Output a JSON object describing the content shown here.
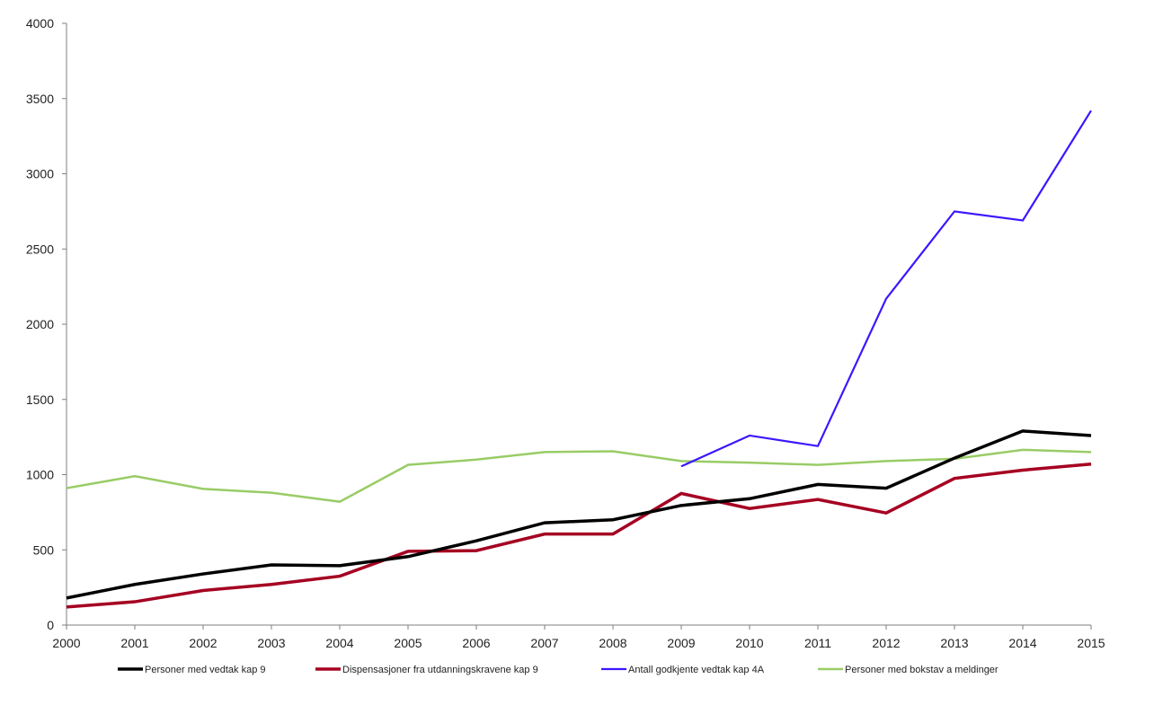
{
  "chart_data": {
    "type": "line",
    "title": "",
    "xlabel": "",
    "ylabel": "",
    "x": [
      2000,
      2001,
      2002,
      2003,
      2004,
      2005,
      2006,
      2007,
      2008,
      2009,
      2010,
      2011,
      2012,
      2013,
      2014,
      2015
    ],
    "ylim": [
      0,
      4000
    ],
    "yticks": [
      0,
      500,
      1000,
      1500,
      2000,
      2500,
      3000,
      3500,
      4000
    ],
    "grid": false,
    "legend_position": "bottom",
    "series": [
      {
        "name": "Personer med vedtak kap 9",
        "color": "#000000",
        "values": [
          180,
          270,
          340,
          400,
          395,
          455,
          560,
          680,
          700,
          795,
          840,
          935,
          910,
          1110,
          1290,
          1260
        ]
      },
      {
        "name": "Dispensasjoner fra utdanningskravene kap 9",
        "color": "#a50021",
        "values": [
          120,
          155,
          230,
          270,
          325,
          490,
          495,
          605,
          605,
          875,
          775,
          835,
          745,
          975,
          1030,
          1070
        ]
      },
      {
        "name": "Antall godkjente vedtak kap 4A",
        "color": "#3b17ff",
        "values": [
          null,
          null,
          null,
          null,
          null,
          null,
          null,
          null,
          null,
          1055,
          1260,
          1190,
          2170,
          2750,
          2690,
          3420
        ]
      },
      {
        "name": "Personer med bokstav a meldinger",
        "color": "#99cc66",
        "values": [
          910,
          990,
          905,
          880,
          820,
          1065,
          1100,
          1150,
          1155,
          1090,
          1080,
          1065,
          1090,
          1105,
          1165,
          1150
        ]
      }
    ]
  }
}
